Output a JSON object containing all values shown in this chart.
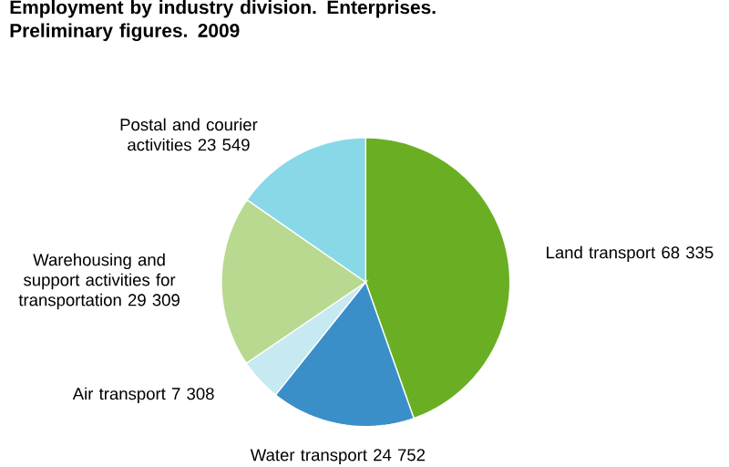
{
  "chart_data": {
    "type": "pie",
    "title": "Employment  by industry division. Enterprises. Preliminary figures. 2009",
    "categories": [
      "Land transport",
      "Water transport",
      "Air transport",
      "Warehousing and support activities for transportation",
      "Postal and courier activities"
    ],
    "values": [
      68335,
      24752,
      7308,
      29309,
      23549
    ],
    "value_labels": [
      "68 335",
      "24 752",
      "7 308",
      "29 309",
      "23 549"
    ],
    "colors": [
      "#6aaf23",
      "#3a8fc8",
      "#c6e9f2",
      "#b8d98f",
      "#88d8e8"
    ]
  }
}
